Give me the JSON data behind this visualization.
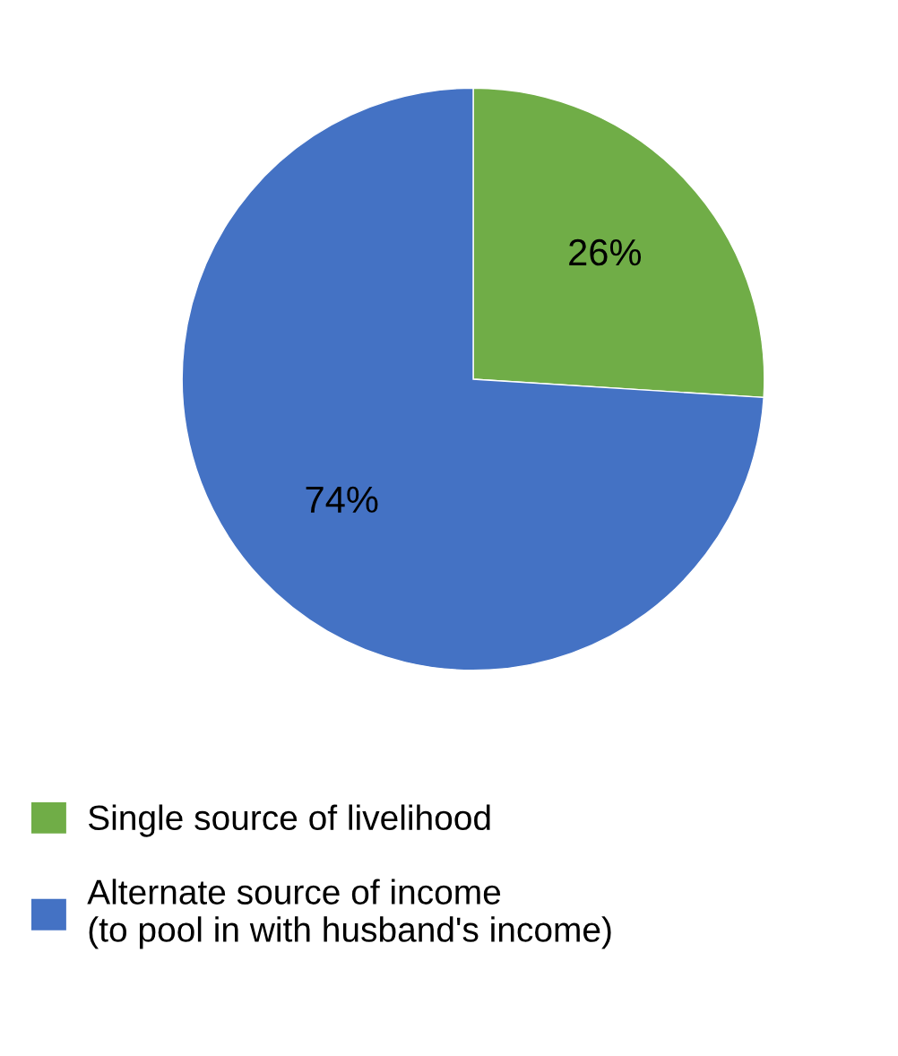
{
  "chart_data": {
    "type": "pie",
    "categories": [
      "Single source of livelihood",
      "Alternate source of income\n(to pool in with husband's income)"
    ],
    "values": [
      26,
      74
    ],
    "colors": [
      "#70ad47",
      "#4472c4"
    ],
    "value_labels": [
      "26%",
      "74%"
    ],
    "legend": "bottom left"
  }
}
